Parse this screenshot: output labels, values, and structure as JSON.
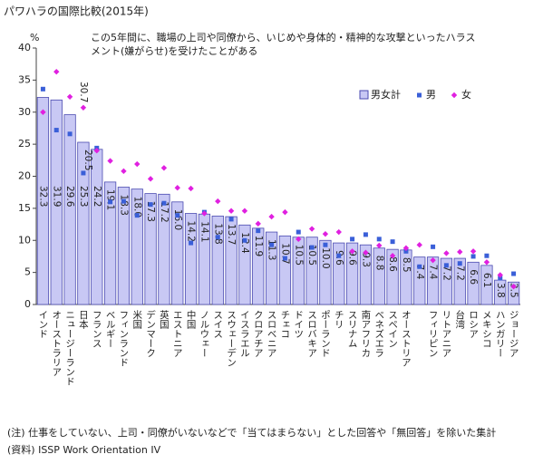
{
  "chart_data": {
    "type": "bar",
    "title": "パワハラの国際比較(2015年)",
    "y_unit": "%",
    "annotation": [
      "この5年間に、職場の上司や同僚から、いじめや身体的・精神的な攻撃といったハラス",
      "メント(嫌がらせ)を受けたことがある"
    ],
    "categories": [
      "インド",
      "オーストラリア",
      "ニュージーランド",
      "日本",
      "フランス",
      "ベルギー",
      "フィンランド",
      "米国",
      "デンマーク",
      "英国",
      "エストニア",
      "中国",
      "ノルウェー",
      "スイス",
      "スウェーデン",
      "イスラエル",
      "クロアチア",
      "スロベニア",
      "チェコ",
      "ドイツ",
      "スロバキア",
      "ポーランド",
      "チリ",
      "スリナム",
      "南アフリカ",
      "ベネズエラ",
      "スペイン",
      "オーストリア",
      null,
      "フィリピン",
      "リトアニア",
      "台湾",
      "ロシア",
      "メキシコ",
      "ハンガリー",
      "ジョージア"
    ],
    "series": [
      {
        "name": "男女計",
        "color": "#c8c8f4",
        "values": [
          32.3,
          31.9,
          29.6,
          25.3,
          24.2,
          19.1,
          18.3,
          18.0,
          17.3,
          17.2,
          16.0,
          14.2,
          14.1,
          13.8,
          13.7,
          12.4,
          11.9,
          11.3,
          10.7,
          10.5,
          10.5,
          10.0,
          9.6,
          9.6,
          9.3,
          8.8,
          8.6,
          8.5,
          7.4,
          7.4,
          7.2,
          7.2,
          6.6,
          6.1,
          3.8,
          3.5
        ],
        "value_labels": [
          "32.3",
          "31.9",
          "29.6",
          "25.3",
          "24.2",
          "19.1",
          "18.3",
          "18.0",
          "17.3",
          "17.2",
          "16.0",
          "14.2",
          "14.1",
          "13.8",
          "13.7",
          "12.4",
          "11.9",
          "11.3",
          "10.7",
          "10.5",
          "10.5",
          "10.0",
          "9.6",
          "9.6",
          "9.3",
          "8.8",
          "8.6",
          "8.5",
          "7.4",
          "7.4",
          "7.2",
          "7.2",
          "6.6",
          "6.1",
          "3.8",
          "3.5"
        ]
      },
      {
        "name": "男",
        "color": "#3a5fd8",
        "values": [
          33.6,
          27.2,
          26.6,
          20.5,
          24.4,
          16.0,
          16.1,
          13.9,
          15.6,
          15.8,
          13.9,
          9.6,
          14.4,
          10.5,
          13.3,
          10.0,
          11.5,
          9.3,
          7.2,
          11.3,
          8.9,
          9.3,
          7.6,
          10.2,
          10.9,
          10.2,
          9.8,
          8.3,
          5.9,
          9.0,
          6.1,
          6.4,
          7.5,
          7.6,
          4.1,
          4.8
        ],
        "value_labels": [
          null,
          null,
          null,
          "20.5",
          null,
          null,
          null,
          null,
          null,
          null,
          null,
          null,
          null,
          null,
          null,
          null,
          null,
          null,
          null,
          null,
          null,
          null,
          null,
          null,
          null,
          null,
          null,
          null,
          null,
          null,
          null,
          null,
          null,
          null,
          null,
          null
        ]
      },
      {
        "name": "女",
        "color": "#e020e0",
        "values": [
          30.0,
          36.3,
          32.4,
          30.7,
          24.0,
          22.4,
          20.8,
          21.9,
          19.6,
          21.3,
          18.2,
          18.1,
          14.2,
          16.1,
          14.6,
          14.6,
          12.6,
          13.7,
          14.4,
          10.2,
          11.8,
          11.0,
          11.3,
          8.3,
          8.1,
          9.2,
          7.6,
          8.8,
          9.3,
          6.9,
          8.0,
          8.2,
          8.3,
          6.6,
          4.6,
          2.8
        ],
        "value_labels": [
          null,
          null,
          null,
          "30.7",
          null,
          null,
          null,
          null,
          null,
          null,
          null,
          null,
          null,
          null,
          null,
          null,
          null,
          null,
          null,
          null,
          null,
          null,
          null,
          null,
          null,
          null,
          null,
          null,
          null,
          null,
          null,
          null,
          null,
          null,
          null,
          null
        ]
      }
    ],
    "ylim": [
      0,
      40
    ],
    "yticks": [
      0,
      5,
      10,
      15,
      20,
      25,
      30,
      35,
      40
    ],
    "legend_position": "upper right",
    "notes": [
      "(注) 仕事をしていない、上司・同僚がいないなどで「当てはまらない」とした回答や「無回答」を除いた集計",
      "(資料) ISSP Work Orientation IV"
    ]
  }
}
